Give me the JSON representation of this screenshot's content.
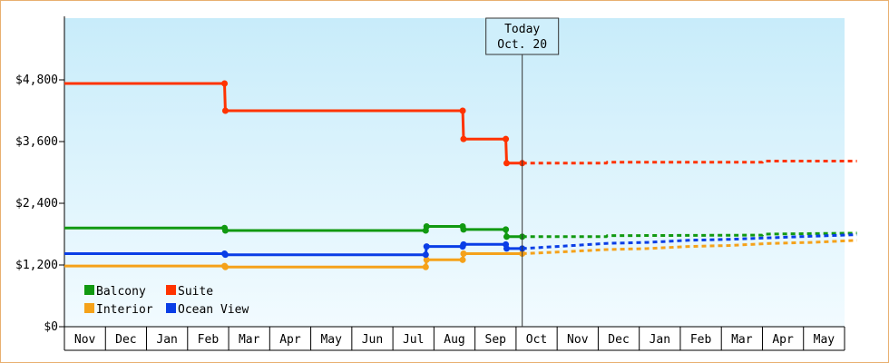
{
  "chart_data": {
    "type": "line",
    "title": "",
    "xlabel": "",
    "ylabel": "",
    "ylim": [
      0,
      6000
    ],
    "y_ticks": [
      {
        "value": 0,
        "label": "$0"
      },
      {
        "value": 1200,
        "label": "$1,200"
      },
      {
        "value": 2400,
        "label": "$2,400"
      },
      {
        "value": 3600,
        "label": "$3,600"
      },
      {
        "value": 4800,
        "label": "$4,800"
      }
    ],
    "x_categories": [
      "Nov",
      "Dec",
      "Jan",
      "Feb",
      "Mar",
      "Apr",
      "May",
      "Jun",
      "Jul",
      "Aug",
      "Sep",
      "Oct",
      "Nov",
      "Dec",
      "Jan",
      "Feb",
      "Mar",
      "Apr",
      "May"
    ],
    "legend_position": "bottom-left",
    "today": {
      "x": 11.15,
      "line1": "Today",
      "line2": "Oct. 20"
    },
    "series": [
      {
        "name": "Balcony",
        "color": "#119911",
        "actual": [
          [
            0,
            1920
          ],
          [
            3.9,
            1920
          ],
          [
            3.92,
            1870
          ],
          [
            8.8,
            1870
          ],
          [
            8.82,
            1950
          ],
          [
            9.7,
            1950
          ],
          [
            9.72,
            1890
          ],
          [
            10.75,
            1890
          ],
          [
            10.77,
            1750
          ],
          [
            11.15,
            1750
          ]
        ],
        "forecast": [
          [
            11.15,
            1750
          ],
          [
            13.2,
            1750
          ],
          [
            13.22,
            1770
          ],
          [
            17.0,
            1780
          ],
          [
            17.02,
            1800
          ],
          [
            19.3,
            1820
          ]
        ]
      },
      {
        "name": "Suite",
        "color": "#ff3300",
        "actual": [
          [
            0,
            4730
          ],
          [
            3.9,
            4730
          ],
          [
            3.92,
            4200
          ],
          [
            8.8,
            4200
          ],
          [
            9.7,
            4200
          ],
          [
            9.72,
            3650
          ],
          [
            10.75,
            3650
          ],
          [
            10.77,
            3180
          ],
          [
            11.15,
            3180
          ]
        ],
        "forecast": [
          [
            11.15,
            3180
          ],
          [
            13.2,
            3180
          ],
          [
            13.22,
            3200
          ],
          [
            17.0,
            3200
          ],
          [
            17.02,
            3220
          ],
          [
            19.3,
            3220
          ]
        ]
      },
      {
        "name": "Interior",
        "color": "#f5a21a",
        "actual": [
          [
            0,
            1180
          ],
          [
            3.9,
            1180
          ],
          [
            3.92,
            1160
          ],
          [
            8.8,
            1160
          ],
          [
            8.82,
            1300
          ],
          [
            9.7,
            1300
          ],
          [
            9.72,
            1420
          ],
          [
            10.75,
            1420
          ],
          [
            11.15,
            1420
          ]
        ],
        "forecast": [
          [
            11.15,
            1420
          ],
          [
            12.0,
            1450
          ],
          [
            13.2,
            1500
          ],
          [
            14.2,
            1520
          ],
          [
            15.2,
            1560
          ],
          [
            16.2,
            1580
          ],
          [
            17.2,
            1620
          ],
          [
            18.2,
            1640
          ],
          [
            19.3,
            1680
          ]
        ]
      },
      {
        "name": "Ocean View",
        "color": "#0a3ee6",
        "actual": [
          [
            0,
            1420
          ],
          [
            3.9,
            1420
          ],
          [
            3.92,
            1400
          ],
          [
            8.8,
            1400
          ],
          [
            8.82,
            1560
          ],
          [
            9.7,
            1560
          ],
          [
            9.72,
            1600
          ],
          [
            10.75,
            1600
          ],
          [
            10.77,
            1520
          ],
          [
            11.15,
            1520
          ]
        ],
        "forecast": [
          [
            11.15,
            1520
          ],
          [
            12.0,
            1560
          ],
          [
            13.2,
            1620
          ],
          [
            14.2,
            1640
          ],
          [
            15.2,
            1680
          ],
          [
            16.2,
            1700
          ],
          [
            17.2,
            1730
          ],
          [
            18.2,
            1760
          ],
          [
            19.3,
            1790
          ]
        ]
      }
    ]
  }
}
